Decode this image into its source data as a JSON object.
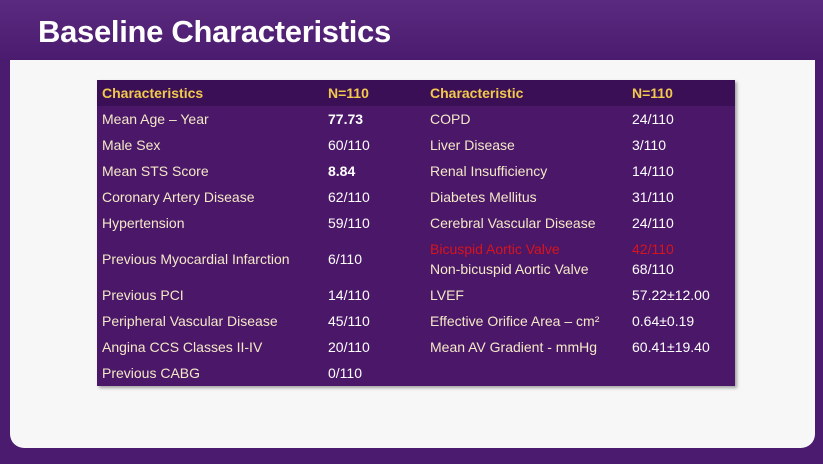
{
  "header": {
    "title": "Baseline Characteristics"
  },
  "table": {
    "columns": [
      "Characteristics",
      "N=110",
      "Characteristic",
      "N=110"
    ],
    "rows": [
      [
        "Mean Age – Year",
        "77.73",
        "COPD",
        "24/110"
      ],
      [
        "Male Sex",
        "60/110",
        "Liver Disease",
        "3/110"
      ],
      [
        "Mean STS Score",
        "8.84",
        "Renal Insufficiency",
        "14/110"
      ],
      [
        "Coronary Artery Disease",
        "62/110",
        "Diabetes Mellitus",
        "31/110"
      ],
      [
        "Hypertension",
        "59/110",
        "Cerebral Vascular Disease",
        "24/110"
      ],
      [
        "Previous Myocardial Infarction",
        "6/110",
        [
          "Bicuspid Aortic Valve",
          "Non-bicuspid Aortic Valve"
        ],
        [
          "42/110",
          "68/110"
        ]
      ],
      [
        "Previous PCI",
        "14/110",
        "LVEF",
        "57.22±12.00"
      ],
      [
        "Peripheral Vascular Disease",
        "45/110",
        "Effective Orifice Area – cm²",
        "0.64±0.19"
      ],
      [
        "Angina CCS Classes II-IV",
        "20/110",
        "Mean AV Gradient - mmHg",
        "60.41±19.40"
      ],
      [
        "Previous CABG",
        "0/110"
      ]
    ]
  }
}
